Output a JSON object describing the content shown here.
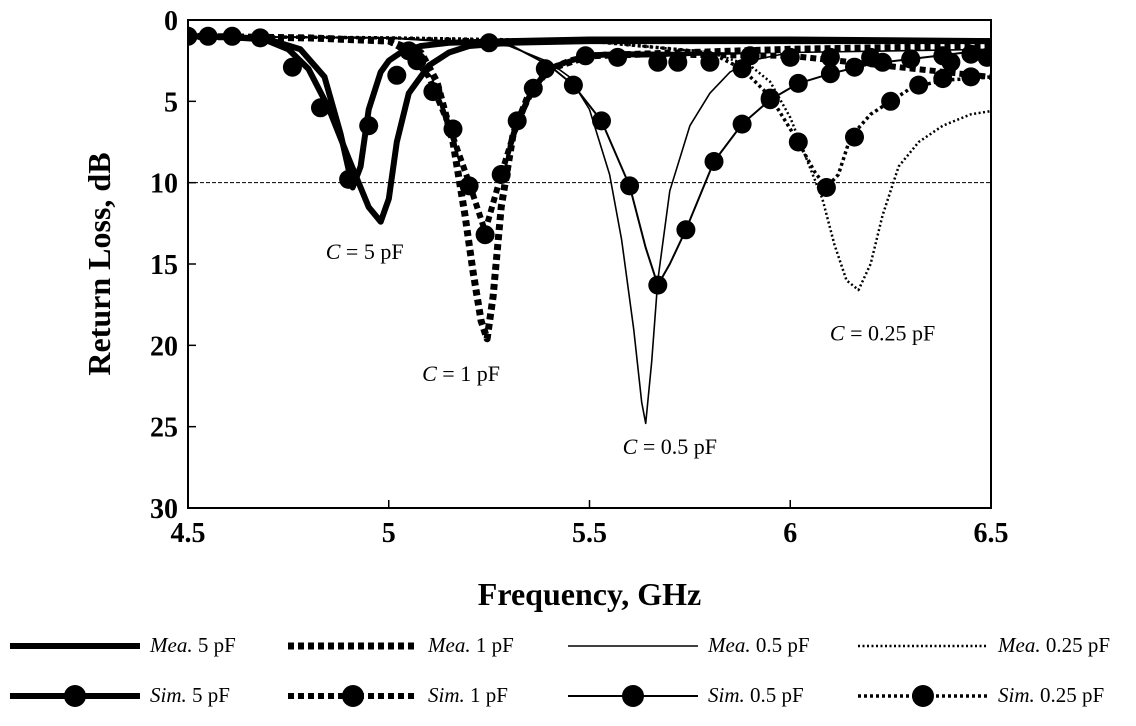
{
  "chart_data": {
    "type": "line",
    "xlabel": "Frequency, GHz",
    "ylabel": "Return Loss, dB",
    "xlim": [
      4.5,
      6.5
    ],
    "ylim": [
      0,
      30
    ],
    "y_inverted": true,
    "x_ticks": [
      "4.5",
      "5",
      "5.5",
      "6",
      "6.5"
    ],
    "x_tick_values": [
      4.5,
      5,
      5.5,
      6,
      6.5
    ],
    "y_ticks": [
      "0",
      "5",
      "10",
      "15",
      "20",
      "25",
      "30"
    ],
    "y_tick_values": [
      0,
      5,
      10,
      15,
      20,
      25,
      30
    ],
    "reference_line": {
      "y": 10,
      "style": "dashed"
    },
    "grid": false,
    "legend_position": "bottom",
    "annotations": [
      {
        "c": "C",
        "rest": " = 5 pF",
        "x": 4.94,
        "y": 14.2
      },
      {
        "c": "C",
        "rest": " = 1 pF",
        "x": 5.18,
        "y": 21.7
      },
      {
        "c": "C",
        "rest": " = 0.5 pF",
        "x": 5.7,
        "y": 26.2
      },
      {
        "c": "C",
        "rest": " = 0.25 pF",
        "x": 6.23,
        "y": 19.2
      }
    ],
    "series": [
      {
        "name": "Mea. 5 pF",
        "prefix": "Mea.",
        "suffix": "5 pF",
        "style": "solid-thick",
        "color": "#000000",
        "x": [
          4.5,
          4.6,
          4.7,
          4.78,
          4.84,
          4.88,
          4.91,
          4.93,
          4.95,
          4.98,
          5.0,
          5.03,
          5.08,
          5.15,
          5.3,
          5.5,
          6.0,
          6.5
        ],
        "y": [
          1.0,
          1.05,
          1.2,
          1.8,
          3.5,
          7.0,
          10.3,
          9.0,
          5.5,
          3.2,
          2.5,
          2.0,
          1.6,
          1.4,
          1.3,
          1.2,
          1.2,
          1.3
        ]
      },
      {
        "name": "Sim. 5 pF",
        "prefix": "Sim.",
        "suffix": "5 pF",
        "style": "solid-thick-marker",
        "color": "#000000",
        "x": [
          4.5,
          4.55,
          4.6,
          4.65,
          4.7,
          4.75,
          4.8,
          4.85,
          4.9,
          4.95,
          4.98,
          5.0,
          5.02,
          5.05,
          5.1,
          5.15,
          5.2,
          5.3,
          5.5,
          6.0,
          6.5
        ],
        "y": [
          1.0,
          1.0,
          1.05,
          1.1,
          1.3,
          1.8,
          3.0,
          5.4,
          8.5,
          11.5,
          12.4,
          11.0,
          7.5,
          4.5,
          2.8,
          2.0,
          1.6,
          1.4,
          1.3,
          1.3,
          1.3
        ],
        "markers_x": [
          4.5,
          4.55,
          4.61,
          4.68,
          4.76,
          4.83,
          4.9,
          4.95,
          5.02,
          5.07,
          5.25
        ],
        "markers_y": [
          1.0,
          1.0,
          1.0,
          1.1,
          2.9,
          5.4,
          9.8,
          6.5,
          3.4,
          2.5,
          1.4
        ]
      },
      {
        "name": "Mea. 1 pF",
        "prefix": "Mea.",
        "suffix": "1 pF",
        "style": "dashed-thick",
        "color": "#000000",
        "x": [
          4.5,
          4.8,
          5.0,
          5.08,
          5.12,
          5.16,
          5.19,
          5.21,
          5.23,
          5.245,
          5.26,
          5.28,
          5.31,
          5.35,
          5.4,
          5.5,
          6.0,
          6.5
        ],
        "y": [
          1.0,
          1.1,
          1.3,
          2.0,
          3.8,
          7.5,
          12.0,
          15.5,
          18.5,
          19.6,
          17.0,
          11.5,
          7.0,
          4.5,
          3.0,
          2.2,
          1.8,
          1.6
        ]
      },
      {
        "name": "Sim. 1 pF",
        "prefix": "Sim.",
        "suffix": "1 pF",
        "style": "dashed-thick-marker",
        "color": "#000000",
        "x": [
          4.5,
          4.8,
          5.0,
          5.05,
          5.1,
          5.15,
          5.2,
          5.24,
          5.28,
          5.32,
          5.36,
          5.4,
          5.45,
          5.5,
          5.55,
          6.0,
          6.5
        ],
        "y": [
          1.0,
          1.1,
          1.3,
          2.0,
          3.5,
          6.5,
          10.0,
          13.0,
          9.5,
          6.3,
          4.2,
          3.0,
          2.5,
          2.2,
          2.1,
          2.2,
          3.5
        ],
        "markers_x": [
          5.05,
          5.11,
          5.16,
          5.2,
          5.24,
          5.28,
          5.32,
          5.36,
          5.39,
          5.49,
          5.57,
          5.67,
          5.72,
          5.8,
          5.9,
          6.0,
          6.1,
          6.2,
          6.3,
          6.4,
          6.49
        ],
        "markers_y": [
          1.9,
          4.4,
          6.7,
          10.2,
          13.2,
          9.5,
          6.2,
          4.2,
          3.0,
          2.2,
          2.3,
          2.6,
          2.6,
          2.6,
          2.2,
          2.3,
          2.3,
          2.3,
          2.4,
          2.6,
          2.3
        ]
      },
      {
        "name": "Mea. 0.5 pF",
        "prefix": "Mea.",
        "suffix": "0.5 pF",
        "style": "solid-thin",
        "color": "#000000",
        "x": [
          4.5,
          5.0,
          5.3,
          5.4,
          5.45,
          5.5,
          5.55,
          5.58,
          5.61,
          5.63,
          5.64,
          5.655,
          5.67,
          5.7,
          5.75,
          5.8,
          5.85,
          5.9,
          6.0,
          6.5
        ],
        "y": [
          1.0,
          1.1,
          1.6,
          2.6,
          3.5,
          5.5,
          9.5,
          13.5,
          19.0,
          23.5,
          24.8,
          21.0,
          16.0,
          10.5,
          6.5,
          4.5,
          3.2,
          2.5,
          2.0,
          1.8
        ]
      },
      {
        "name": "Sim. 0.5 pF",
        "prefix": "Sim.",
        "suffix": "0.5 pF",
        "style": "solid-thin-marker",
        "color": "#000000",
        "x": [
          4.5,
          5.0,
          5.3,
          5.4,
          5.46,
          5.53,
          5.6,
          5.64,
          5.67,
          5.7,
          5.74,
          5.81,
          5.88,
          5.95,
          6.02,
          6.1,
          6.2,
          6.3,
          6.4,
          6.5
        ],
        "y": [
          1.0,
          1.1,
          1.5,
          2.8,
          4.0,
          6.2,
          10.2,
          14.0,
          16.3,
          15.0,
          12.9,
          8.7,
          6.4,
          4.9,
          3.9,
          3.3,
          2.7,
          2.4,
          2.1,
          1.8
        ],
        "markers_x": [
          5.46,
          5.53,
          5.6,
          5.67,
          5.74,
          5.81,
          5.88,
          5.95,
          6.02,
          6.1,
          6.16,
          6.23,
          6.3,
          6.38,
          6.45
        ],
        "markers_y": [
          4.0,
          6.2,
          10.2,
          16.3,
          12.9,
          8.7,
          6.4,
          4.9,
          3.9,
          3.3,
          2.9,
          2.6,
          2.4,
          2.2,
          2.1
        ]
      },
      {
        "name": "Mea. 0.25 pF",
        "prefix": "Mea.",
        "suffix": "0.25 pF",
        "style": "dotted",
        "color": "#000000",
        "x": [
          4.5,
          5.0,
          5.5,
          5.8,
          5.9,
          5.95,
          6.0,
          6.04,
          6.08,
          6.11,
          6.14,
          6.17,
          6.2,
          6.23,
          6.27,
          6.32,
          6.38,
          6.45,
          6.5
        ],
        "y": [
          1.0,
          1.1,
          1.3,
          2.0,
          2.8,
          3.8,
          6.0,
          8.5,
          11.0,
          13.8,
          16.0,
          16.6,
          15.0,
          12.0,
          9.0,
          7.5,
          6.5,
          5.8,
          5.6
        ]
      },
      {
        "name": "Sim. 0.25 pF",
        "prefix": "Sim.",
        "suffix": "0.25 pF",
        "style": "dotted-thick-marker",
        "color": "#000000",
        "x": [
          4.5,
          5.0,
          5.5,
          5.8,
          5.88,
          5.95,
          6.02,
          6.06,
          6.09,
          6.12,
          6.15,
          6.2,
          6.25,
          6.3,
          6.38,
          6.45,
          6.5
        ],
        "y": [
          1.0,
          1.1,
          1.3,
          2.0,
          3.0,
          4.7,
          7.5,
          9.3,
          10.3,
          9.5,
          7.2,
          5.8,
          5.0,
          4.2,
          3.7,
          3.6,
          3.5
        ],
        "markers_x": [
          5.88,
          5.95,
          6.02,
          6.09,
          6.16,
          6.25,
          6.32,
          6.38,
          6.45
        ],
        "markers_y": [
          3.0,
          4.8,
          7.5,
          10.3,
          7.2,
          5.0,
          4.0,
          3.6,
          3.5
        ]
      }
    ]
  }
}
